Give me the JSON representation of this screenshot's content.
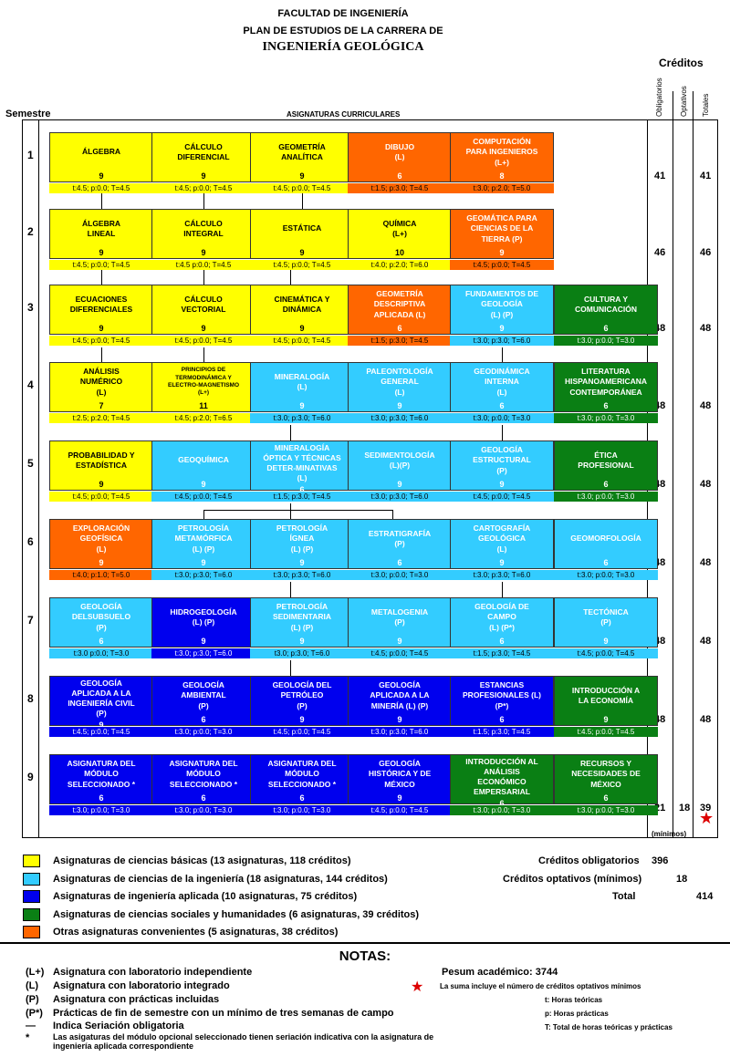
{
  "header": {
    "line1": "FACULTAD DE INGENIERÍA",
    "line2": "PLAN DE ESTUDIOS DE LA CARRERA DE",
    "line3": "INGENIERÍA GEOLÓGICA"
  },
  "credits_header": {
    "title": "Créditos",
    "obligatorios": "Obligatorios",
    "optativos": "Optativos",
    "totales": "Totales"
  },
  "semestre_label": "Semestre",
  "asignaturas_label": "ASIGNATURAS CURRICULARES",
  "semesters": [
    {
      "num": "1",
      "oblig": "41",
      "opt": "",
      "total": "41",
      "courses": [
        {
          "name": "ÁLGEBRA",
          "cr": "9",
          "hours": "t:4.5; p:0.0; T=4.5",
          "cat": "basic"
        },
        {
          "name": "CÁLCULO\nDIFERENCIAL",
          "cr": "9",
          "hours": "t:4.5; p:0.0; T=4.5",
          "cat": "basic"
        },
        {
          "name": "GEOMETRÍA\nANALÍTICA",
          "cr": "9",
          "hours": "t:4.5; p:0.0; T=4.5",
          "cat": "basic"
        },
        {
          "name": "DIBUJO\n(L)",
          "cr": "6",
          "hours": "t:1.5; p:3.0; T=4.5",
          "cat": "otr"
        },
        {
          "name": "COMPUTACIÓN\nPARA INGENIEROS\n(L+)",
          "cr": "8",
          "hours": "t:3.0; p:2.0; T=5.0",
          "cat": "otr"
        }
      ]
    },
    {
      "num": "2",
      "oblig": "46",
      "opt": "",
      "total": "46",
      "courses": [
        {
          "name": "ÁLGEBRA\nLINEAL",
          "cr": "9",
          "hours": "t:4.5; p:0.0; T=4.5",
          "cat": "basic"
        },
        {
          "name": "CÁLCULO\nINTEGRAL",
          "cr": "9",
          "hours": "t:4.5 p:0.0; T=4.5",
          "cat": "basic"
        },
        {
          "name": "ESTÁTICA",
          "cr": "9",
          "hours": "t:4.5; p:0.0; T=4.5",
          "cat": "basic"
        },
        {
          "name": "QUÍMICA\n(L+)",
          "cr": "10",
          "hours": "t:4.0; p:2.0; T=6.0",
          "cat": "basic"
        },
        {
          "name": "GEOMÁTICA PARA\nCIENCIAS DE LA\nTIERRA (P)",
          "cr": "9",
          "hours": "t:4.5; p:0.0; T=4.5",
          "cat": "otr"
        }
      ]
    },
    {
      "num": "3",
      "oblig": "48",
      "opt": "",
      "total": "48",
      "courses": [
        {
          "name": "ECUACIONES\nDIFERENCIALES",
          "cr": "9",
          "hours": "t:4.5; p:0.0; T=4.5",
          "cat": "basic"
        },
        {
          "name": "CÁLCULO\nVECTORIAL",
          "cr": "9",
          "hours": "t:4.5; p:0.0; T=4.5",
          "cat": "basic"
        },
        {
          "name": "CINEMÁTICA Y\nDINÁMICA",
          "cr": "9",
          "hours": "t:4.5; p:0.0; T=4.5",
          "cat": "basic"
        },
        {
          "name": "GEOMETRÍA\nDESCRIPTIVA\nAPLICADA (L)",
          "cr": "6",
          "hours": "t:1.5; p:3.0; T=4.5",
          "cat": "otr"
        },
        {
          "name": "FUNDAMENTOS DE\nGEOLOGÍA\n(L) (P)",
          "cr": "9",
          "hours": "t:3.0; p:3.0; T=6.0",
          "cat": "ing"
        },
        {
          "name": "CULTURA Y\nCOMUNICACIÓN",
          "cr": "6",
          "hours": "t:3.0; p:0.0; T=3.0",
          "cat": "soc"
        }
      ]
    },
    {
      "num": "4",
      "oblig": "48",
      "opt": "",
      "total": "48",
      "courses": [
        {
          "name": "ANÁLISIS\nNUMÉRICO\n(L)",
          "cr": "7",
          "hours": "t:2.5; p:2.0; T=4.5",
          "cat": "basic"
        },
        {
          "name": "PRINCIPIOS DE\nTERMODINÁMICA Y\nELECTRO-MAGNETISMO\n(L+)",
          "cr": "11",
          "hours": "t:4.5; p:2.0; T=6.5",
          "cat": "basic",
          "small": true
        },
        {
          "name": "MINERALOGÍA\n(L)",
          "cr": "9",
          "hours": "t:3.0; p:3.0; T=6.0",
          "cat": "ing"
        },
        {
          "name": "PALEONTOLOGÍA\nGENERAL\n(L)",
          "cr": "9",
          "hours": "t:3.0; p:3.0; T=6.0",
          "cat": "ing"
        },
        {
          "name": "GEODINÁMICA\nINTERNA\n(L)",
          "cr": "6",
          "hours": "t:3.0; p:0.0; T=3.0",
          "cat": "ing"
        },
        {
          "name": "LITERATURA\nHISPANOAMERICANA\nCONTEMPORÁNEA",
          "cr": "6",
          "hours": "t:3.0; p:0.0; T=3.0",
          "cat": "soc"
        }
      ]
    },
    {
      "num": "5",
      "oblig": "48",
      "opt": "",
      "total": "48",
      "courses": [
        {
          "name": "PROBABILIDAD Y\nESTADÍSTICA",
          "cr": "9",
          "hours": "t:4.5; p:0.0; T=4.5",
          "cat": "basic"
        },
        {
          "name": "GEOQUÍMICA",
          "cr": "9",
          "hours": "t:4.5; p:0.0; T=4.5",
          "cat": "ing"
        },
        {
          "name": "MINERALOGÍA\nÓPTICA Y TÉCNICAS\nDETER-MINATIVAS\n(L)",
          "cr": "6",
          "hours": "t:1.5; p:3.0; T=4.5",
          "cat": "ing"
        },
        {
          "name": "SEDIMENTOLOGÍA\n(L)(P)",
          "cr": "9",
          "hours": "t:3.0; p:3.0; T=6.0",
          "cat": "ing"
        },
        {
          "name": "GEOLOGÍA\nESTRUCTURAL\n(P)",
          "cr": "9",
          "hours": "t:4.5; p:0.0; T=4.5",
          "cat": "ing"
        },
        {
          "name": "ÉTICA\nPROFESIONAL",
          "cr": "6",
          "hours": "t:3.0; p:0.0; T=3.0",
          "cat": "soc"
        }
      ]
    },
    {
      "num": "6",
      "oblig": "48",
      "opt": "",
      "total": "48",
      "courses": [
        {
          "name": "EXPLORACIÓN\nGEOFÍSICA\n(L)",
          "cr": "9",
          "hours": "t:4.0; p:1.0; T=5.0",
          "cat": "otr"
        },
        {
          "name": "PETROLOGÍA\nMETAMÓRFICA\n(L) (P)",
          "cr": "9",
          "hours": "t:3.0; p:3.0; T=6.0",
          "cat": "ing"
        },
        {
          "name": "PETROLOGÍA\nÍGNEA\n(L) (P)",
          "cr": "9",
          "hours": "t:3.0; p:3.0; T=6.0",
          "cat": "ing"
        },
        {
          "name": "ESTRATIGRAFÍA\n(P)",
          "cr": "6",
          "hours": "t:3.0; p:0.0; T=3.0",
          "cat": "ing"
        },
        {
          "name": "CARTOGRAFÍA\nGEOLÓGICA\n(L)",
          "cr": "9",
          "hours": "t:3.0; p:3.0; T=6.0",
          "cat": "ing"
        },
        {
          "name": "GEOMORFOLOGÍA",
          "cr": "6",
          "hours": "t:3.0; p:0.0; T=3.0",
          "cat": "ing"
        }
      ]
    },
    {
      "num": "7",
      "oblig": "48",
      "opt": "",
      "total": "48",
      "courses": [
        {
          "name": "GEOLOGÍA\nDELSUBSUELO\n(P)",
          "cr": "6",
          "hours": "t:3.0 p:0.0; T=3.0",
          "cat": "ing"
        },
        {
          "name": "HIDROGEOLOGÍA\n(L) (P)",
          "cr": "9",
          "hours": "t:3.0; p:3.0; T=6.0",
          "cat": "apl"
        },
        {
          "name": "PETROLOGÍA\nSEDIMENTARIA\n(L) (P)",
          "cr": "9",
          "hours": "t3.0; p:3.0; T=6.0",
          "cat": "ing"
        },
        {
          "name": "METALOGENIA\n(P)",
          "cr": "9",
          "hours": "t:4.5; p:0.0; T=4.5",
          "cat": "ing"
        },
        {
          "name": "GEOLOGÍA DE\nCAMPO\n(L) (P*)",
          "cr": "6",
          "hours": "t:1.5; p:3.0; T=4.5",
          "cat": "ing"
        },
        {
          "name": "TECTÓNICA\n(P)",
          "cr": "9",
          "hours": "t:4.5; p:0.0; T=4.5",
          "cat": "ing"
        }
      ]
    },
    {
      "num": "8",
      "oblig": "48",
      "opt": "",
      "total": "48",
      "courses": [
        {
          "name": "GEOLOGÍA\nAPLICADA A LA\nINGENIERÍA CIVIL\n(P)",
          "cr": "9",
          "hours": "t:4.5; p:0.0; T=4.5",
          "cat": "apl"
        },
        {
          "name": "GEOLOGÍA\nAMBIENTAL\n(P)",
          "cr": "6",
          "hours": "t:3.0; p:0.0; T=3.0",
          "cat": "apl"
        },
        {
          "name": "GEOLOGÍA DEL\nPETRÓLEO\n(P)",
          "cr": "9",
          "hours": "t:4.5; p:0.0; T=4.5",
          "cat": "apl"
        },
        {
          "name": "GEOLOGÍA\nAPLICADA A LA\nMINERÍA (L) (P)",
          "cr": "9",
          "hours": "t:3.0; p:3.0; T=6.0",
          "cat": "apl"
        },
        {
          "name": "ESTANCIAS\nPROFESIONALES (L)\n(P*)",
          "cr": "6",
          "hours": "t:1.5; p:3.0; T=4.5",
          "cat": "apl"
        },
        {
          "name": "INTRODUCCIÓN A\nLA ECONOMÍA",
          "cr": "9",
          "hours": "t:4.5; p:0.0; T=4.5",
          "cat": "soc"
        }
      ]
    },
    {
      "num": "9",
      "oblig": "21",
      "opt": "18",
      "total": "39",
      "courses": [
        {
          "name": "ASIGNATURA DEL\nMÓDULO\nSELECCIONADO *",
          "cr": "6",
          "hours": "t:3.0; p:0.0; T=3.0",
          "cat": "apl"
        },
        {
          "name": "ASIGNATURA DEL\nMÓDULO\nSELECCIONADO *",
          "cr": "6",
          "hours": "t:3.0; p:0.0; T=3.0",
          "cat": "apl"
        },
        {
          "name": "ASIGNATURA DEL\nMÓDULO\nSELECCIONADO *",
          "cr": "6",
          "hours": "t:3.0; p:0.0; T=3.0",
          "cat": "apl"
        },
        {
          "name": "GEOLOGÍA\nHISTÓRICA Y DE\nMÉXICO",
          "cr": "9",
          "hours": "t:4.5; p:0.0; T=4.5",
          "cat": "apl"
        },
        {
          "name": "INTRODUCCIÓN AL\nANÁLISIS\nECONÓMICO\nEMPERSARIAL",
          "cr": "6",
          "hours": "t:3.0; p:0.0; T=3.0",
          "cat": "soc"
        },
        {
          "name": "RECURSOS Y\nNECESIDADES DE\nMÉXICO",
          "cr": "6",
          "hours": "t:3.0; p:0.0; T=3.0",
          "cat": "soc"
        }
      ]
    }
  ],
  "minimos_label": "(mínimos)",
  "colors": {
    "basic": "#ffff00",
    "ing": "#33ccff",
    "apl": "#0000ee",
    "soc": "#0a7f14",
    "otr": "#ff6600",
    "star": "#dd0000"
  },
  "legend": [
    {
      "cat": "basic",
      "text": "Asignaturas de ciencias básicas (13 asignaturas, 118 créditos)"
    },
    {
      "cat": "ing",
      "text": "Asignaturas de ciencias de la ingeniería (18 asignaturas, 144 créditos)"
    },
    {
      "cat": "apl",
      "text": "Asignaturas de ingeniería aplicada (10 asignaturas, 75 créditos)"
    },
    {
      "cat": "soc",
      "text": "Asignaturas de ciencias sociales y humanidades (6 asignaturas, 39 créditos)"
    },
    {
      "cat": "otr",
      "text": "Otras asignaturas convenientes (5 asignaturas, 38 créditos)"
    }
  ],
  "summary": {
    "oblig_label": "Créditos obligatorios",
    "oblig_value": "396",
    "opt_label": "Créditos optativos (mínimos)",
    "opt_value": "18",
    "total_label": "Total",
    "total_value": "414"
  },
  "notas_title": "NOTAS:",
  "notes": [
    {
      "k": "(L+)",
      "v": "Asignatura con laboratorio independiente"
    },
    {
      "k": "(L)",
      "v": "Asignatura con laboratorio integrado"
    },
    {
      "k": "(P)",
      "v": "Asignatura con prácticas incluidas"
    },
    {
      "k": "(P*)",
      "v": "Prácticas de fin de semestre con un mínimo de tres semanas de campo"
    },
    {
      "k": "—",
      "v": "Indica Seriación obligatoria"
    },
    {
      "k": "*",
      "v": "Las asigaturas del módulo opcional seleccionado tienen seriación indicativa con la asignatura de ingeniería aplicada correspondiente"
    }
  ],
  "pesum": "Pesum académico: 3744",
  "star_note": "La suma incluye el número de créditos optativos mínimos",
  "hours_notes": [
    "t: Horas teóricas",
    "p: Horas prácticas",
    "T: Total de horas teóricas y prácticas"
  ]
}
